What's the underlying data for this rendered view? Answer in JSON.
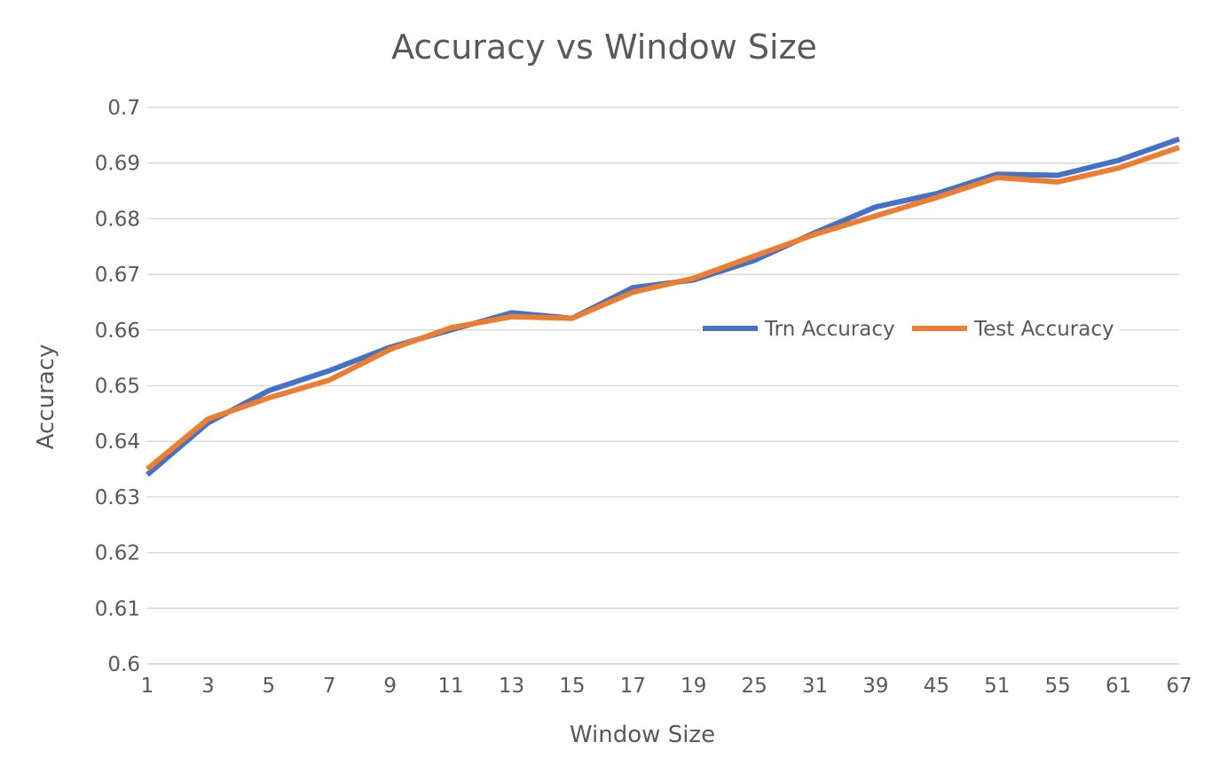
{
  "chart_data": {
    "type": "line",
    "title": "Accuracy vs Window Size",
    "xlabel": "Window Size",
    "ylabel": "Accuracy",
    "categories": [
      "1",
      "3",
      "5",
      "7",
      "9",
      "11",
      "13",
      "15",
      "17",
      "19",
      "25",
      "31",
      "39",
      "45",
      "51",
      "55",
      "61",
      "67"
    ],
    "yticks": [
      "0.6",
      "0.61",
      "0.62",
      "0.63",
      "0.64",
      "0.65",
      "0.66",
      "0.67",
      "0.68",
      "0.69",
      "0.7"
    ],
    "ylim": [
      0.6,
      0.7
    ],
    "grid": true,
    "legend_position": "right, inside plot",
    "series": [
      {
        "name": "Trn Accuracy",
        "color": "#4472c4",
        "values": [
          0.634,
          0.6433,
          0.6491,
          0.6527,
          0.6569,
          0.66,
          0.6631,
          0.6621,
          0.6676,
          0.669,
          0.6725,
          0.6775,
          0.6821,
          0.6845,
          0.688,
          0.6878,
          0.6905,
          0.6943
        ]
      },
      {
        "name": "Test Accuracy",
        "color": "#ed7d31",
        "values": [
          0.635,
          0.644,
          0.6478,
          0.651,
          0.6565,
          0.6604,
          0.6624,
          0.6621,
          0.6668,
          0.6693,
          0.6733,
          0.6772,
          0.6805,
          0.6838,
          0.6874,
          0.6866,
          0.6891,
          0.6928
        ]
      }
    ]
  }
}
